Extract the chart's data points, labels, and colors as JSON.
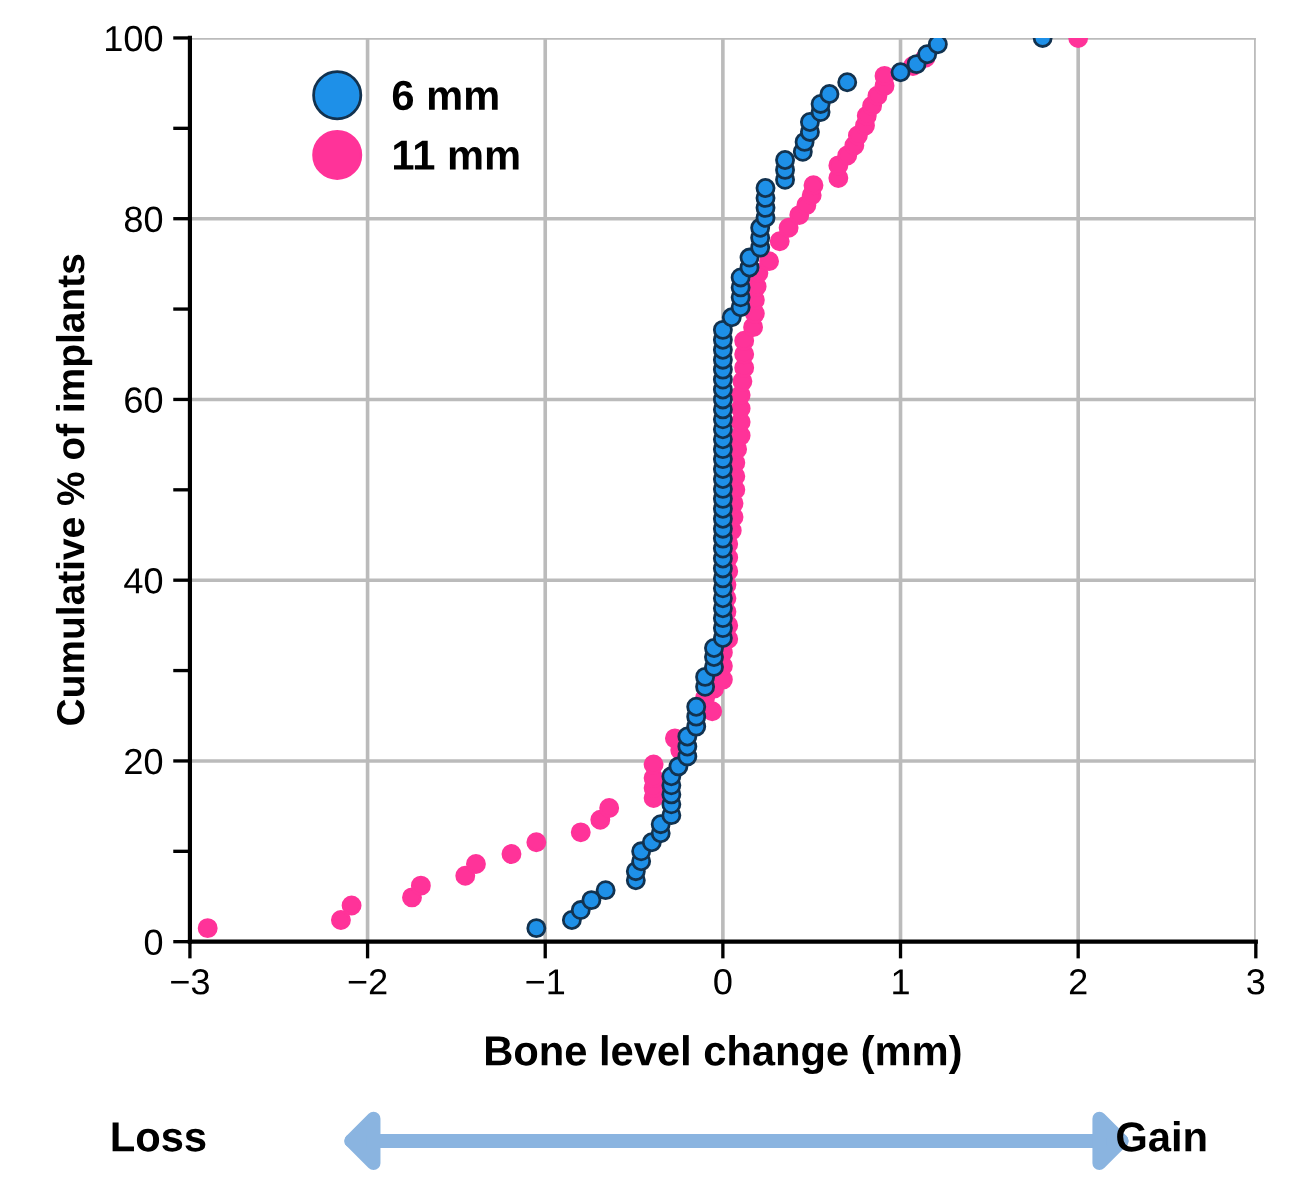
{
  "chart_data": {
    "type": "scatter",
    "xlabel": "Bone level change (mm)",
    "ylabel": "Cumulative % of implants",
    "xlim": [
      -3,
      3
    ],
    "ylim": [
      0,
      100
    ],
    "xticks": [
      {
        "value": -3,
        "label": "−3"
      },
      {
        "value": -2,
        "label": "−2"
      },
      {
        "value": -1,
        "label": "−1"
      },
      0,
      1,
      2,
      3
    ],
    "yticks": [
      0,
      {
        "value": 10,
        "label": null
      },
      20,
      {
        "value": 30,
        "label": null
      },
      40,
      {
        "value": 50,
        "label": null
      },
      60,
      {
        "value": 70,
        "label": null
      },
      80,
      {
        "value": 90,
        "label": null
      },
      100
    ],
    "grid": true,
    "legend": "top left",
    "marker": "circle",
    "annotations": [
      "Loss",
      "Gain"
    ],
    "series": [
      {
        "name": "6 mm",
        "color": "#1e90e8",
        "x": [
          -1.05,
          -0.85,
          -0.8,
          -0.74,
          -0.66,
          -0.49,
          -0.49,
          -0.46,
          -0.46,
          -0.4,
          -0.35,
          -0.35,
          -0.29,
          -0.29,
          -0.29,
          -0.29,
          -0.29,
          -0.25,
          -0.2,
          -0.2,
          -0.2,
          -0.15,
          -0.15,
          -0.15,
          -0.1,
          -0.1,
          -0.05,
          -0.05,
          -0.05,
          0,
          0,
          0,
          0,
          0,
          0,
          0,
          0,
          0,
          0,
          0,
          0,
          0,
          0,
          0,
          0,
          0,
          0,
          0,
          0,
          0,
          0,
          0,
          0,
          0,
          0,
          0,
          0,
          0,
          0,
          0,
          0,
          0.05,
          0.1,
          0.1,
          0.1,
          0.1,
          0.15,
          0.15,
          0.21,
          0.21,
          0.21,
          0.24,
          0.24,
          0.24,
          0.24,
          0.35,
          0.35,
          0.35,
          0.45,
          0.46,
          0.49,
          0.49,
          0.55,
          0.55,
          0.6,
          0.7,
          1.0,
          1.09,
          1.15,
          1.21,
          1.8
        ],
        "values": [
          1.5,
          2.4,
          3.5,
          4.6,
          5.7,
          6.8,
          7.8,
          8.9,
          10,
          11,
          12,
          13,
          14,
          15.2,
          16.3,
          17.3,
          18.3,
          19.4,
          20.5,
          21.6,
          22.7,
          23.8,
          24.9,
          26,
          28.2,
          29.3,
          30.4,
          31.5,
          32.5,
          33.6,
          34.7,
          35.8,
          36.9,
          38,
          39.1,
          40.2,
          41.3,
          42.4,
          43.5,
          44.6,
          45.7,
          46.8,
          47.9,
          49,
          50.1,
          51.2,
          52.3,
          53.4,
          54.5,
          55.6,
          56.7,
          57.8,
          58.9,
          60,
          61.1,
          62.2,
          63.3,
          64.4,
          65.5,
          66.6,
          67.7,
          69.1,
          70.2,
          71.3,
          72.4,
          73.5,
          74.6,
          75.7,
          76.8,
          77.9,
          79,
          80.1,
          81.2,
          82.3,
          83.4,
          84.3,
          85.4,
          86.5,
          87.4,
          88.5,
          89.6,
          90.7,
          91.8,
          92.7,
          93.8,
          95.1,
          96.2,
          97.1,
          98.2,
          99.3,
          100
        ]
      },
      {
        "name": "11 mm",
        "color": "#ff3399",
        "x": [
          -2.9,
          -2.15,
          -2.09,
          -1.75,
          -1.7,
          -1.45,
          -1.39,
          -1.19,
          -1.05,
          -0.8,
          -0.69,
          -0.64,
          -0.39,
          -0.39,
          -0.39,
          -0.39,
          -0.24,
          -0.27,
          -0.06,
          -0.1,
          -0.05,
          0,
          0,
          0,
          0.03,
          0.03,
          0.02,
          0.02,
          0.02,
          0.03,
          0.03,
          0.03,
          0.05,
          0.06,
          0.06,
          0.07,
          0.07,
          0.07,
          0.08,
          0.1,
          0.1,
          0.1,
          0.1,
          0.11,
          0.12,
          0.12,
          0.12,
          0.17,
          0.18,
          0.18,
          0.19,
          0.2,
          0.26,
          0.32,
          0.37,
          0.43,
          0.47,
          0.5,
          0.51,
          0.65,
          0.65,
          0.7,
          0.74,
          0.76,
          0.8,
          0.81,
          0.84,
          0.87,
          0.91,
          0.91,
          1.07,
          1.14,
          2.0
        ],
        "values": [
          1.5,
          2.4,
          4,
          4.9,
          6.2,
          7.3,
          8.6,
          9.7,
          11,
          12.1,
          13.5,
          14.8,
          15.9,
          17,
          18.1,
          19.6,
          21.2,
          22.5,
          25.5,
          27,
          28,
          29,
          30.5,
          32,
          33.5,
          35,
          36.5,
          38,
          39.5,
          41,
          42.5,
          44,
          45.5,
          47,
          48.5,
          50,
          51.5,
          53,
          54.5,
          56,
          57.5,
          59,
          60.5,
          62,
          63.5,
          65,
          66.5,
          68,
          69.5,
          71,
          72.5,
          74,
          75.3,
          77.5,
          79,
          80.4,
          81.5,
          82.6,
          83.7,
          84.5,
          85.9,
          87,
          88.1,
          89.2,
          90.3,
          91.4,
          92.5,
          93.6,
          94.7,
          95.8,
          96.9,
          97.8,
          100
        ]
      }
    ]
  }
}
